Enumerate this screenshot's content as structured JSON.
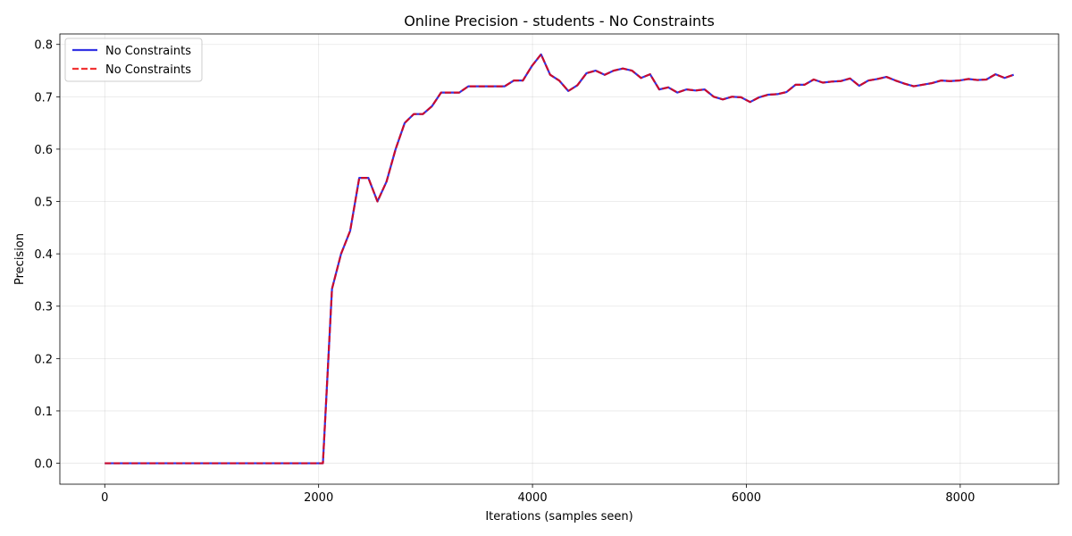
{
  "chart_data": {
    "type": "line",
    "title": "Online Precision - students - No Constraints",
    "xlabel": "Iterations (samples seen)",
    "ylabel": "Precision",
    "xlim": [
      -420,
      8920
    ],
    "ylim": [
      -0.04,
      0.82
    ],
    "xticks": [
      0,
      2000,
      4000,
      6000,
      8000
    ],
    "xtick_labels": [
      "0",
      "2000",
      "4000",
      "6000",
      "8000"
    ],
    "yticks": [
      0.0,
      0.1,
      0.2,
      0.3,
      0.4,
      0.5,
      0.6,
      0.7,
      0.8
    ],
    "ytick_labels": [
      "0.0",
      "0.1",
      "0.2",
      "0.3",
      "0.4",
      "0.5",
      "0.6",
      "0.7",
      "0.8"
    ],
    "grid": true,
    "legend_position": "top-left",
    "x": [
      0,
      85,
      170,
      255,
      340,
      425,
      510,
      595,
      680,
      765,
      850,
      935,
      1020,
      1105,
      1190,
      1275,
      1360,
      1445,
      1530,
      1615,
      1700,
      1785,
      1870,
      1955,
      2040,
      2125,
      2210,
      2295,
      2380,
      2465,
      2550,
      2635,
      2720,
      2805,
      2890,
      2975,
      3060,
      3145,
      3230,
      3315,
      3400,
      3485,
      3570,
      3655,
      3740,
      3825,
      3910,
      3995,
      4080,
      4165,
      4250,
      4335,
      4420,
      4505,
      4590,
      4675,
      4760,
      4845,
      4930,
      5015,
      5100,
      5185,
      5270,
      5355,
      5440,
      5525,
      5610,
      5695,
      5780,
      5865,
      5950,
      6035,
      6120,
      6205,
      6290,
      6375,
      6460,
      6545,
      6630,
      6715,
      6800,
      6885,
      6970,
      7055,
      7140,
      7225,
      7310,
      7395,
      7480,
      7565,
      7650,
      7735,
      7820,
      7905,
      7990,
      8075,
      8160,
      8245,
      8330,
      8415,
      8500
    ],
    "series": [
      {
        "name": "No Constraints",
        "color": "#0000dd",
        "style": "solid",
        "values": [
          0.0,
          0.0,
          0.0,
          0.0,
          0.0,
          0.0,
          0.0,
          0.0,
          0.0,
          0.0,
          0.0,
          0.0,
          0.0,
          0.0,
          0.0,
          0.0,
          0.0,
          0.0,
          0.0,
          0.0,
          0.0,
          0.0,
          0.0,
          0.0,
          0.0,
          0.333,
          0.4,
          0.444,
          0.545,
          0.545,
          0.5,
          0.538,
          0.6,
          0.65,
          0.667,
          0.667,
          0.682,
          0.708,
          0.708,
          0.708,
          0.72,
          0.72,
          0.72,
          0.72,
          0.72,
          0.731,
          0.731,
          0.759,
          0.781,
          0.742,
          0.731,
          0.711,
          0.722,
          0.745,
          0.75,
          0.742,
          0.75,
          0.754,
          0.75,
          0.736,
          0.743,
          0.714,
          0.718,
          0.708,
          0.714,
          0.712,
          0.714,
          0.7,
          0.695,
          0.7,
          0.699,
          0.69,
          0.699,
          0.704,
          0.705,
          0.709,
          0.723,
          0.723,
          0.733,
          0.727,
          0.729,
          0.73,
          0.735,
          0.721,
          0.731,
          0.734,
          0.738,
          0.731,
          0.725,
          0.72,
          0.723,
          0.726,
          0.731,
          0.73,
          0.731,
          0.734,
          0.732,
          0.733,
          0.743,
          0.736,
          0.742
        ]
      },
      {
        "name": "No Constraints",
        "color": "#ee0000",
        "style": "dashed",
        "values": [
          0.0,
          0.0,
          0.0,
          0.0,
          0.0,
          0.0,
          0.0,
          0.0,
          0.0,
          0.0,
          0.0,
          0.0,
          0.0,
          0.0,
          0.0,
          0.0,
          0.0,
          0.0,
          0.0,
          0.0,
          0.0,
          0.0,
          0.0,
          0.0,
          0.0,
          0.333,
          0.4,
          0.444,
          0.545,
          0.545,
          0.5,
          0.538,
          0.6,
          0.65,
          0.667,
          0.667,
          0.682,
          0.708,
          0.708,
          0.708,
          0.72,
          0.72,
          0.72,
          0.72,
          0.72,
          0.731,
          0.731,
          0.759,
          0.781,
          0.742,
          0.731,
          0.711,
          0.722,
          0.745,
          0.75,
          0.742,
          0.75,
          0.754,
          0.75,
          0.736,
          0.743,
          0.714,
          0.718,
          0.708,
          0.714,
          0.712,
          0.714,
          0.7,
          0.695,
          0.7,
          0.699,
          0.69,
          0.699,
          0.704,
          0.705,
          0.709,
          0.723,
          0.723,
          0.733,
          0.727,
          0.729,
          0.73,
          0.735,
          0.721,
          0.731,
          0.734,
          0.738,
          0.731,
          0.725,
          0.72,
          0.723,
          0.726,
          0.731,
          0.73,
          0.731,
          0.734,
          0.732,
          0.733,
          0.743,
          0.736,
          0.742
        ]
      }
    ]
  }
}
